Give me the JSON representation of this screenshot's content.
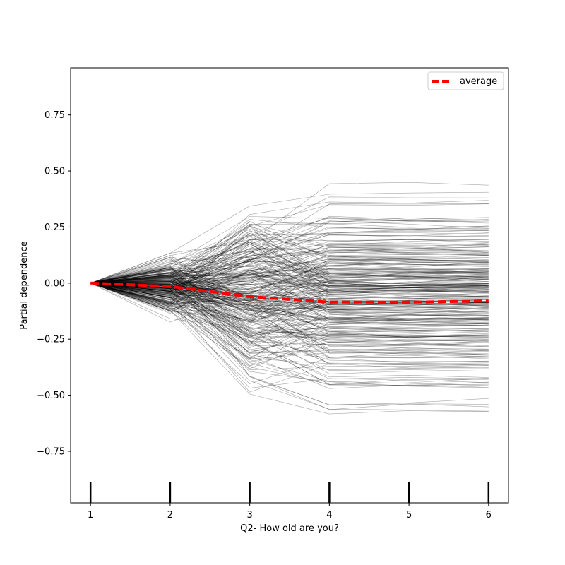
{
  "chart_data": {
    "type": "line",
    "title": "",
    "xlabel": "Q2- How old are you?",
    "ylabel": "Partial dependence",
    "x": [
      1,
      2,
      3,
      4,
      5,
      6
    ],
    "xticks": [
      1,
      2,
      3,
      4,
      5,
      6
    ],
    "yticks": [
      0.75,
      0.5,
      0.25,
      0.0,
      -0.25,
      -0.5,
      -0.75
    ],
    "ytick_labels": [
      "0.75",
      "0.50",
      "0.25",
      "0.00",
      "−0.25",
      "−0.50",
      "−0.75"
    ],
    "xlim": [
      0.75,
      6.25
    ],
    "ylim": [
      -0.98,
      0.96
    ],
    "grid": false,
    "legend_position": "top-right",
    "deciles_rug_x": [
      1,
      2,
      3,
      4,
      5,
      6
    ],
    "series": [
      {
        "name": "average",
        "style": "dashed",
        "color": "#ff0000",
        "values": [
          0.0,
          -0.015,
          -0.06,
          -0.085,
          -0.085,
          -0.08
        ]
      }
    ],
    "ice_lines": {
      "description_count": 300,
      "color": "#000000",
      "value_range_at_x": {
        "1": [
          0.0,
          0.0
        ],
        "2": [
          -0.24,
          0.19
        ],
        "3": [
          -0.59,
          0.5
        ],
        "4": [
          -0.72,
          0.57
        ],
        "5": [
          -0.72,
          0.57
        ],
        "6": [
          -0.73,
          0.56
        ]
      }
    }
  },
  "colors": {
    "ice": "#000000",
    "average": "#ff0000",
    "frame": "#000000"
  }
}
